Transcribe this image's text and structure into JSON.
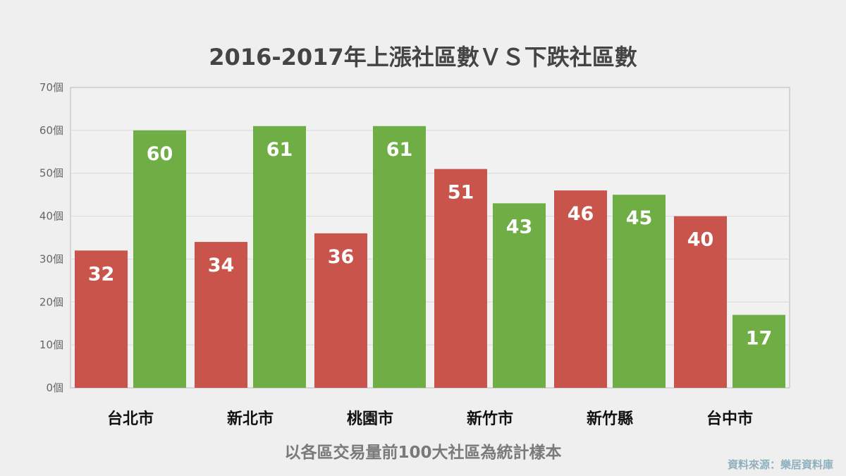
{
  "chart_data": {
    "type": "bar",
    "title": "2016-2017年上漲社區數ＶＳ下跌社區數",
    "subtitle": "以各區交易量前100大社區為統計樣本",
    "source": "資料來源：樂居資料庫",
    "categories": [
      "台北市",
      "新北市",
      "桃園市",
      "新竹市",
      "新竹縣",
      "台中市"
    ],
    "series": [
      {
        "values": [
          32,
          34,
          36,
          51,
          46,
          40
        ],
        "color": "#c9544c"
      },
      {
        "values": [
          60,
          61,
          61,
          43,
          45,
          17
        ],
        "color": "#6fae45"
      }
    ],
    "ylim": [
      0,
      70
    ],
    "yticks": [
      "0個",
      "10個",
      "20個",
      "30個",
      "40個",
      "50個",
      "60個",
      "70個"
    ],
    "grid": true,
    "legend": "none"
  }
}
